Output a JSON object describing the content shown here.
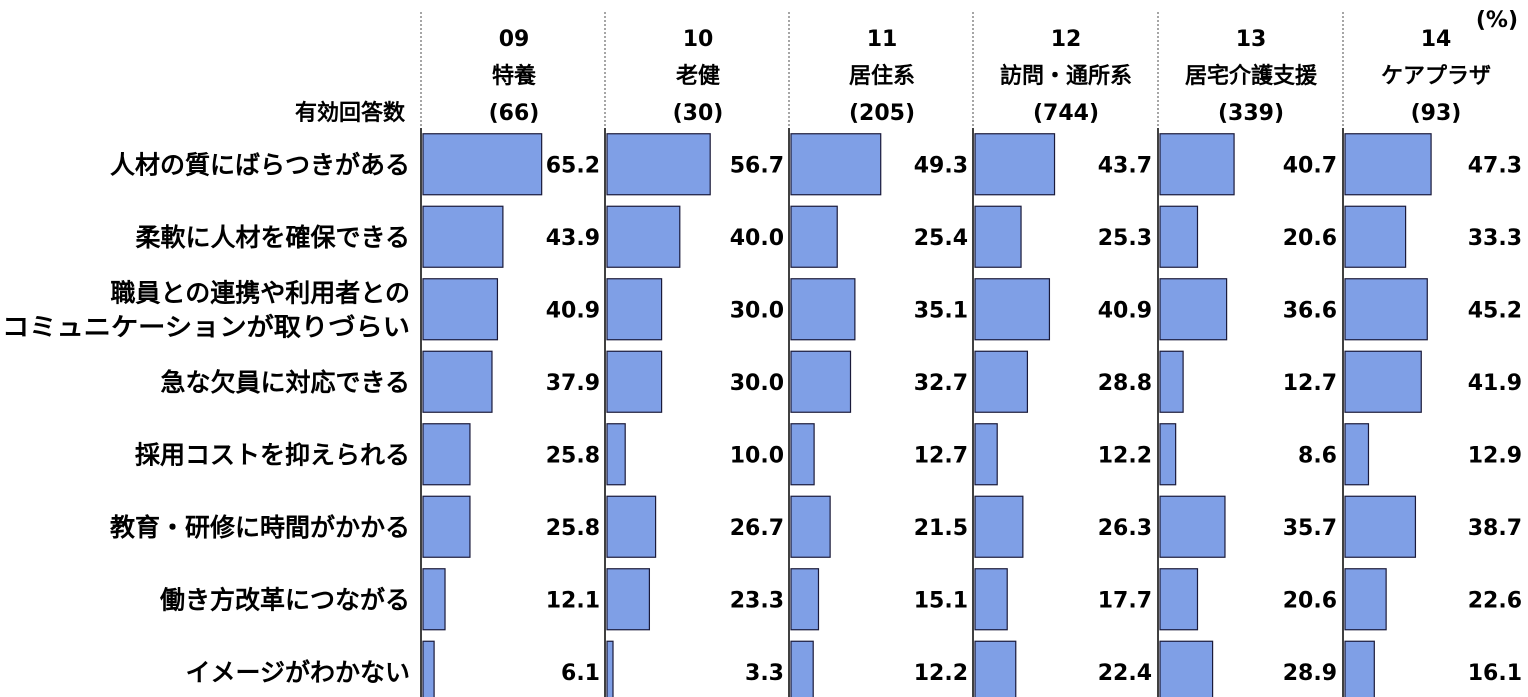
{
  "chart_data": {
    "type": "bar",
    "orientation": "horizontal",
    "unit_label": "(%)",
    "row_header": "有効回答数",
    "categories": [
      [
        "人材の質にばらつきがある"
      ],
      [
        "柔軟に人材を確保できる"
      ],
      [
        "職員との連携や利用者との",
        "コミュニケーションが取りづらい"
      ],
      [
        "急な欠員に対応できる"
      ],
      [
        "採用コストを抑えられる"
      ],
      [
        "教育・研修に時間がかかる"
      ],
      [
        "働き方改革につながる"
      ],
      [
        "イメージがわかない"
      ]
    ],
    "xlim": [
      0,
      100
    ],
    "bar_color": "#7f9fe6",
    "bar_edge_color": "#1a1a3a",
    "series": [
      {
        "code": "09",
        "name": "特養",
        "n": "(66)",
        "values": [
          65.2,
          43.9,
          40.9,
          37.9,
          25.8,
          25.8,
          12.1,
          6.1
        ]
      },
      {
        "code": "10",
        "name": "老健",
        "n": "(30)",
        "values": [
          56.7,
          40.0,
          30.0,
          30.0,
          10.0,
          26.7,
          23.3,
          3.3
        ]
      },
      {
        "code": "11",
        "name": "居住系",
        "n": "(205)",
        "values": [
          49.3,
          25.4,
          35.1,
          32.7,
          12.7,
          21.5,
          15.1,
          12.2
        ]
      },
      {
        "code": "12",
        "name": "訪問・通所系",
        "n": "(744)",
        "values": [
          43.7,
          25.3,
          40.9,
          28.8,
          12.2,
          26.3,
          17.7,
          22.4
        ]
      },
      {
        "code": "13",
        "name": "居宅介護支援",
        "n": "(339)",
        "values": [
          40.7,
          20.6,
          36.6,
          12.7,
          8.6,
          35.7,
          20.6,
          28.9
        ]
      },
      {
        "code": "14",
        "name": "ケアプラザ",
        "n": "(93)",
        "values": [
          47.3,
          33.3,
          45.2,
          41.9,
          12.9,
          38.7,
          22.6,
          16.1
        ]
      }
    ]
  }
}
